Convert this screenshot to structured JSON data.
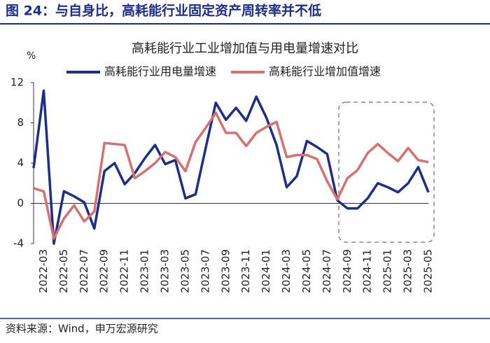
{
  "header": {
    "title": "图 24：与自身比，高耗能行业固定资产周转率并不低"
  },
  "chart_data": {
    "type": "line",
    "title": "高耗能行业工业增加值与用电量增速对比",
    "y_unit": "%",
    "categories": [
      null,
      "2022-03",
      null,
      "2022-05",
      null,
      "2022-07",
      null,
      "2022-09",
      null,
      "2022-11",
      null,
      "2023-01",
      null,
      "2023-03",
      null,
      "2023-05",
      null,
      "2023-07",
      null,
      "2023-09",
      null,
      "2023-11",
      null,
      "2024-01",
      null,
      "2024-03",
      null,
      "2024-05",
      null,
      "2024-07",
      null,
      "2024-09",
      null,
      "2024-11",
      null,
      "2025-01",
      null,
      "2025-03",
      null,
      "2025-05"
    ],
    "series": [
      {
        "name": "高耗能行业用电量增速",
        "color": "#1c2d8c",
        "values": [
          3.5,
          11.2,
          -4,
          1.2,
          0.7,
          0.1,
          -2.5,
          3.2,
          4.0,
          1.9,
          3.0,
          4.5,
          5.8,
          3.9,
          4.3,
          0.5,
          0.9,
          5.5,
          10.0,
          8.3,
          9.5,
          8.2,
          10.6,
          8.5,
          5.8,
          1.6,
          2.7,
          6.2,
          5.6,
          4.9,
          0.3,
          -0.5,
          -0.5,
          0.5,
          2.0,
          1.6,
          1.1,
          2.0,
          3.6,
          1.1
        ]
      },
      {
        "name": "高耗能行业增加值增速",
        "color": "#d97070",
        "values": [
          1.5,
          1.2,
          -3.5,
          -1.5,
          -0.2,
          -1.8,
          -0.8,
          6.0,
          5.9,
          5.8,
          2.5,
          3.2,
          4.0,
          5.1,
          4.6,
          3.2,
          6.1,
          7.5,
          9.0,
          7.0,
          7.0,
          5.7,
          7.0,
          7.6,
          8.1,
          4.6,
          4.8,
          4.8,
          4.4,
          2.2,
          0.4,
          2.5,
          3.3,
          5.0,
          5.9,
          5.0,
          4.2,
          5.5,
          4.3,
          4.1
        ]
      }
    ],
    "ylim": [
      -4,
      12
    ],
    "yticks": [
      -4,
      0,
      4,
      8,
      12
    ]
  },
  "source": "资料来源：Wind，申万宏源研究"
}
